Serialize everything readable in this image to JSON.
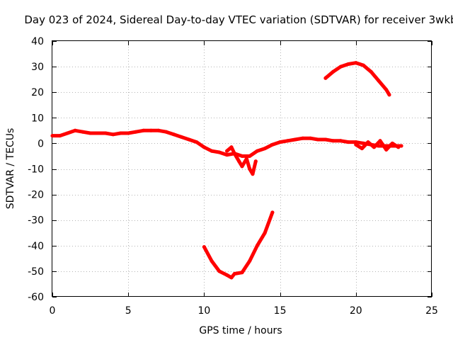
{
  "chart_data": {
    "type": "scatter",
    "title": "Day 023 of 2024, Sidereal Day-to-day VTEC variation (SDTVAR) for receiver 3wkb",
    "xlabel": "GPS time / hours",
    "ylabel": "SDTVAR / TECUs",
    "xlim": [
      0,
      25
    ],
    "ylim": [
      -60,
      40
    ],
    "xticks": [
      0,
      5,
      10,
      15,
      20,
      25
    ],
    "yticks": [
      -60,
      -50,
      -40,
      -30,
      -20,
      -10,
      0,
      10,
      20,
      30,
      40
    ],
    "grid": true,
    "colors": {
      "series": "#ff0000",
      "grid": "#b4b4b4",
      "axis": "#000000"
    },
    "series": [
      {
        "name": "main-track",
        "x": [
          0,
          0.5,
          1,
          1.5,
          2,
          2.5,
          3,
          3.5,
          4,
          4.5,
          5,
          5.5,
          6,
          6.5,
          7,
          7.5,
          8,
          8.5,
          9,
          9.5,
          10,
          10.5,
          11,
          11.5,
          12,
          12.5,
          13,
          13.5,
          14,
          14.5,
          15,
          15.5,
          16,
          16.5,
          17,
          17.5,
          18,
          18.5,
          19,
          19.5,
          20,
          20.5,
          21,
          21.5,
          22,
          22.5,
          23
        ],
        "y": [
          3,
          3,
          4,
          5,
          4.5,
          4,
          4,
          4,
          3.5,
          4,
          4,
          4.5,
          5,
          5,
          5,
          4.5,
          3.5,
          2.5,
          1.5,
          0.5,
          -1.5,
          -3,
          -3.5,
          -4.5,
          -4,
          -5,
          -5,
          -3,
          -2,
          -0.5,
          0.5,
          1,
          1.5,
          2,
          2,
          1.5,
          1.5,
          1,
          1,
          0.5,
          0.5,
          0,
          -0.5,
          -1,
          -1,
          -1,
          -1
        ]
      },
      {
        "name": "disturbance-spikes",
        "x": [
          11.5,
          11.8,
          12,
          12.3,
          12.5,
          12.8,
          13,
          13.2,
          13.4
        ],
        "y": [
          -3,
          -1.5,
          -4,
          -7,
          -9,
          -6,
          -10,
          -12,
          -7
        ]
      },
      {
        "name": "late-scatter",
        "x": [
          20,
          20.4,
          20.8,
          21.2,
          21.6,
          22,
          22.4,
          22.8
        ],
        "y": [
          -0.5,
          -2,
          0.5,
          -1.5,
          1,
          -2.5,
          0,
          -1.5
        ]
      },
      {
        "name": "upper-arc",
        "x": [
          18,
          18.5,
          19,
          19.5,
          20,
          20.5,
          21,
          21.5,
          22,
          22.2
        ],
        "y": [
          25.5,
          28,
          30,
          31,
          31.5,
          30.5,
          28,
          24.5,
          21,
          19
        ]
      },
      {
        "name": "lower-arc",
        "x": [
          10,
          10.5,
          11,
          11.5,
          11.8,
          12,
          12.5,
          13,
          13.5,
          14,
          14.5
        ],
        "y": [
          -40.5,
          -46,
          -50,
          -51.5,
          -52.5,
          -51,
          -50.5,
          -46,
          -40,
          -35,
          -27
        ]
      }
    ]
  }
}
